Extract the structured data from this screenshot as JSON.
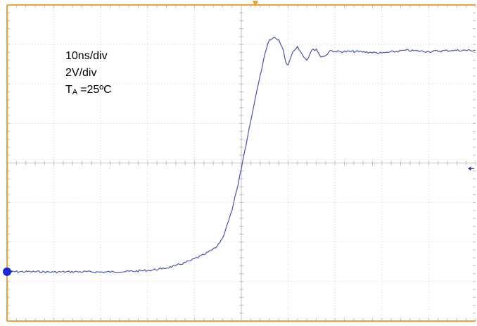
{
  "chart_data": {
    "type": "line",
    "title": "",
    "xlabel": "",
    "ylabel": "",
    "grid": true,
    "annotations": {
      "time_scale": "10ns/div",
      "volt_scale": "2V/div",
      "temp_label": "T",
      "temp_subscript": "A",
      "temp_value": "=25ºC"
    },
    "xlim": [
      0,
      10
    ],
    "ylim": [
      -4,
      4
    ],
    "x_unit": "div",
    "y_unit": "div",
    "series": [
      {
        "x": [
          0,
          0.5,
          1,
          1.5,
          2,
          2.5,
          3,
          3.3,
          3.6,
          3.9,
          4.2,
          4.45,
          4.6,
          4.7,
          4.8,
          4.9,
          5.0,
          5.1,
          5.2,
          5.3,
          5.4,
          5.5,
          5.6,
          5.7,
          5.8,
          5.9,
          5.95,
          6.0,
          6.1,
          6.2,
          6.3,
          6.4,
          6.5,
          6.6,
          6.7,
          6.8,
          6.9,
          7.0,
          7.5,
          8.0,
          8.5,
          9.0,
          9.5,
          10.0
        ],
        "y": [
          -2.75,
          -2.75,
          -2.76,
          -2.75,
          -2.76,
          -2.75,
          -2.72,
          -2.68,
          -2.6,
          -2.48,
          -2.32,
          -2.15,
          -1.9,
          -1.55,
          -1.2,
          -0.7,
          -0.15,
          0.45,
          1.05,
          1.65,
          2.2,
          2.75,
          3.12,
          3.18,
          3.12,
          2.85,
          2.55,
          2.48,
          2.82,
          2.95,
          2.75,
          2.6,
          2.85,
          2.88,
          2.68,
          2.72,
          2.85,
          2.82,
          2.82,
          2.78,
          2.85,
          2.82,
          2.85,
          2.85
        ],
        "color": "#4a52b0"
      }
    ],
    "colors": {
      "frame": "#f0a030",
      "grid": "#d0d0d0",
      "trace": "#4a52b0",
      "marker": "#1a2ad8"
    }
  }
}
